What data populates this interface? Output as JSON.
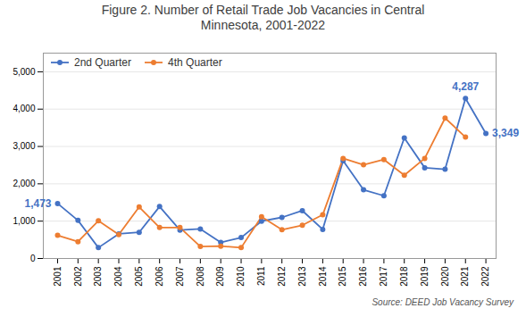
{
  "chart_data": {
    "type": "line",
    "title": "Figure 2. Number of Retail Trade Job Vacancies in Central\nMinnesota, 2001-2022",
    "x": [
      2001,
      2002,
      2003,
      2004,
      2005,
      2006,
      2007,
      2008,
      2009,
      2010,
      2011,
      2012,
      2013,
      2014,
      2015,
      2016,
      2017,
      2018,
      2019,
      2020,
      2021,
      2022
    ],
    "series": [
      {
        "name": "2nd Quarter",
        "color": "#4472c4",
        "marker": "circle",
        "values": [
          1473,
          1020,
          290,
          660,
          700,
          1390,
          760,
          790,
          430,
          560,
          1000,
          1100,
          1280,
          780,
          2620,
          1840,
          1680,
          3230,
          2430,
          2390,
          4287,
          3349
        ]
      },
      {
        "name": "4th Quarter",
        "color": "#ed7d31",
        "marker": "circle",
        "values": [
          620,
          450,
          1010,
          640,
          1380,
          830,
          830,
          320,
          330,
          290,
          1120,
          770,
          890,
          1170,
          2680,
          2510,
          2650,
          2230,
          2680,
          3760,
          3250,
          null
        ]
      }
    ],
    "xlim": [
      2000.3,
      2022.5
    ],
    "xticks": [
      2001,
      2002,
      2003,
      2004,
      2005,
      2006,
      2007,
      2008,
      2009,
      2010,
      2011,
      2012,
      2013,
      2014,
      2015,
      2016,
      2017,
      2018,
      2019,
      2020,
      2021,
      2022
    ],
    "ylim": [
      0,
      5500
    ],
    "yticks": [
      0,
      {
        "value": 1000,
        "label": "1,000"
      },
      {
        "value": 2000,
        "label": "2,000"
      },
      {
        "value": 3000,
        "label": "3,000"
      },
      {
        "value": 4000,
        "label": "4,000"
      },
      {
        "value": 5000,
        "label": "5,000"
      }
    ],
    "grid": "y",
    "legend": "upper left",
    "annotations": [
      {
        "text": "1,473",
        "x": 2001,
        "y": 1473,
        "color": "#4472c4"
      },
      {
        "text": "4,287",
        "x": 2021,
        "y": 4287,
        "color": "#4472c4"
      },
      {
        "text": "3,349",
        "x": 2022,
        "y": 3349,
        "color": "#4472c4"
      }
    ],
    "source": "Source: DEED Job Vacancy Survey"
  }
}
